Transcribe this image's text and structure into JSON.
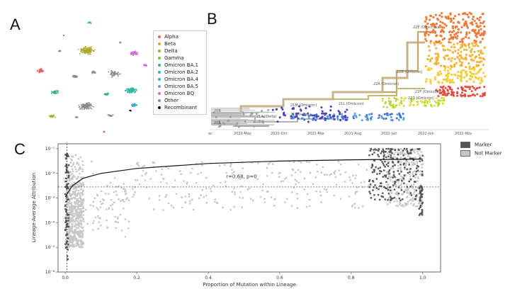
{
  "panels": {
    "a": "A",
    "b": "B",
    "c": "C"
  },
  "legend_a": [
    {
      "label": "Alpha",
      "color": "#e8615f"
    },
    {
      "label": "Beta",
      "color": "#d4a93b"
    },
    {
      "label": "Delta",
      "color": "#a6a92a"
    },
    {
      "label": "Gamma",
      "color": "#7cbf3e"
    },
    {
      "label": "Omicron BA.1",
      "color": "#35b577"
    },
    {
      "label": "Omicron BA.2",
      "color": "#31b6a4"
    },
    {
      "label": "Omicron BA.4",
      "color": "#3aa9d8"
    },
    {
      "label": "Omicron BA.5",
      "color": "#7a8ee8"
    },
    {
      "label": "Omicron BQ",
      "color": "#d26ad6"
    },
    {
      "label": "Other",
      "color": "#8a8a8a"
    },
    {
      "label": "Recombinant",
      "color": "#111111"
    }
  ],
  "tree": {
    "clades": [
      "22E (Omicron)",
      "22B (Omicron)",
      "22A (Omicron)",
      "22F (Omicron)",
      "22D (Omicron)",
      "21M (Omicron)",
      "21L (Omicron)",
      "21A (Delta)",
      "21J (Delta)",
      "20B",
      "20A"
    ],
    "dates": [
      "ac",
      "2020-May",
      "2020-Oct",
      "2021-Mar",
      "2021-Aug",
      "2022-Jan",
      "2022-Jun",
      "2022-Nov"
    ]
  },
  "chart_data": {
    "type": "scatter",
    "xlabel": "Proportion of Mutation within Lineage",
    "ylabel": "Lineage-Average Attribution",
    "x_ticks": [
      "0.0",
      "0.2",
      "0.4",
      "0.6",
      "0.8",
      "1.0"
    ],
    "y_ticks": [
      "10⁻¹",
      "10⁻²",
      "10⁻³",
      "10⁻⁴",
      "10⁻⁵",
      "10⁻⁶"
    ],
    "xlim": [
      -0.02,
      1.05
    ],
    "ylim_log10": [
      -6,
      -0.8
    ],
    "log_y": true,
    "annotation": "r=0.68, p=0",
    "series": [
      {
        "name": "Marker",
        "color": "#555555"
      },
      {
        "name": "Not Marker",
        "color": "#c8c8c8"
      }
    ],
    "fit_curve": {
      "type": "log",
      "points": [
        [
          0.0,
          -2.95
        ],
        [
          0.02,
          -2.5
        ],
        [
          0.05,
          -2.2
        ],
        [
          0.1,
          -2.0
        ],
        [
          0.2,
          -1.8
        ],
        [
          0.4,
          -1.6
        ],
        [
          0.6,
          -1.5
        ],
        [
          0.8,
          -1.45
        ],
        [
          1.0,
          -1.42
        ]
      ]
    },
    "hline_log10": -2.55,
    "vline_x": 0.005
  }
}
